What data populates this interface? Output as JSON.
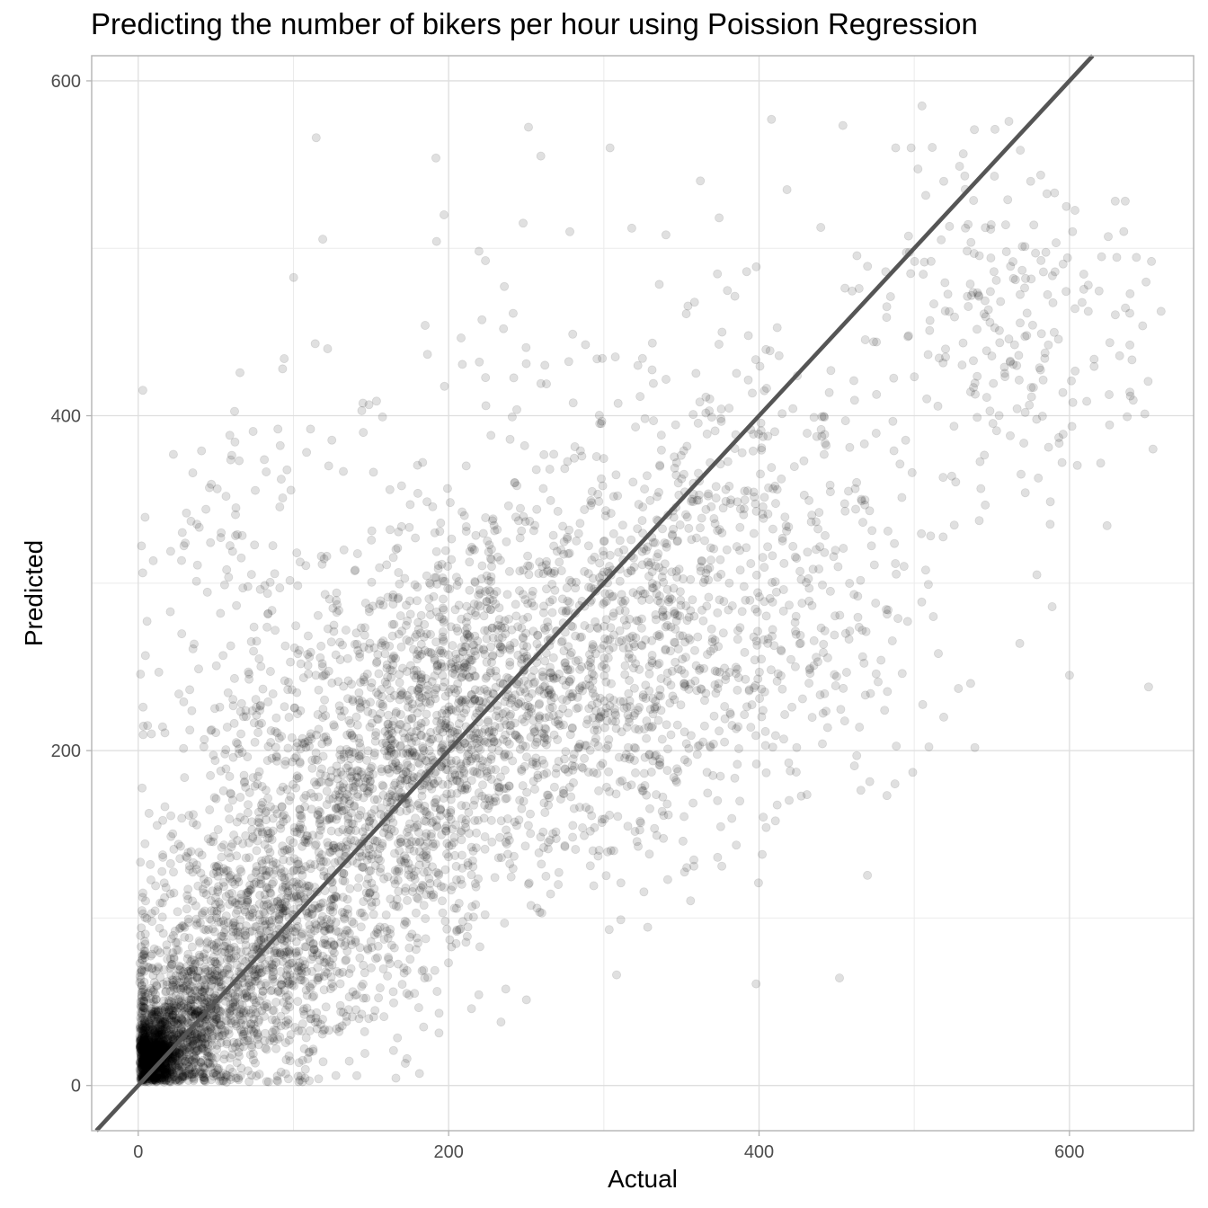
{
  "chart_data": {
    "type": "scatter",
    "title": "Predicting the number of bikers per hour using Poission Regression",
    "xlabel": "Actual",
    "ylabel": "Predicted",
    "xlim": [
      -30,
      680
    ],
    "ylim": [
      -27,
      615
    ],
    "x_ticks": [
      0,
      200,
      400,
      600
    ],
    "y_ticks": [
      0,
      200,
      400,
      600
    ],
    "x_tick_labels": [
      "0",
      "200",
      "400",
      "600"
    ],
    "y_tick_labels": [
      "0",
      "200",
      "400",
      "600"
    ],
    "grid": true,
    "reference_line": {
      "slope": 1,
      "intercept": 0,
      "color": "#555555"
    },
    "point_color": "#000000",
    "point_alpha": 0.12,
    "notable_points": [
      {
        "x": 408,
        "y": 577
      },
      {
        "x": 505,
        "y": 585
      },
      {
        "x": 304,
        "y": 560
      },
      {
        "x": 488,
        "y": 560
      },
      {
        "x": 498,
        "y": 560
      },
      {
        "x": 197,
        "y": 520
      },
      {
        "x": 248,
        "y": 515
      },
      {
        "x": 93,
        "y": 428
      },
      {
        "x": 114,
        "y": 443
      },
      {
        "x": 122,
        "y": 440
      },
      {
        "x": 144,
        "y": 403
      },
      {
        "x": 579,
        "y": 305
      },
      {
        "x": 600,
        "y": 245
      },
      {
        "x": 651,
        "y": 238
      },
      {
        "x": 568,
        "y": 264
      },
      {
        "x": 519,
        "y": 220
      },
      {
        "x": 499,
        "y": 187
      },
      {
        "x": 402,
        "y": 138
      },
      {
        "x": 376,
        "y": 131
      },
      {
        "x": 358,
        "y": 131
      },
      {
        "x": 311,
        "y": 121
      },
      {
        "x": 260,
        "y": 103
      },
      {
        "x": 236,
        "y": 97
      },
      {
        "x": 212,
        "y": 89
      },
      {
        "x": 178,
        "y": 55
      },
      {
        "x": 173,
        "y": 55
      },
      {
        "x": 106,
        "y": 15
      },
      {
        "x": 59,
        "y": 10
      },
      {
        "x": 6,
        "y": 215
      },
      {
        "x": 3,
        "y": 115
      },
      {
        "x": 34,
        "y": 337
      },
      {
        "x": 90,
        "y": 392
      },
      {
        "x": 111,
        "y": 392
      },
      {
        "x": 635,
        "y": 510
      },
      {
        "x": 625,
        "y": 507
      },
      {
        "x": 598,
        "y": 525
      },
      {
        "x": 575,
        "y": 540
      },
      {
        "x": 519,
        "y": 540
      },
      {
        "x": 418,
        "y": 535
      },
      {
        "x": 318,
        "y": 512
      },
      {
        "x": 340,
        "y": 508
      }
    ],
    "clusters": [
      {
        "cx": 10,
        "cy": 18,
        "sx": 8,
        "sy": 10,
        "count": 900
      },
      {
        "cx": 30,
        "cy": 35,
        "sx": 20,
        "sy": 22,
        "count": 800
      },
      {
        "cx": 75,
        "cy": 80,
        "sx": 35,
        "sy": 38,
        "count": 900
      },
      {
        "cx": 140,
        "cy": 150,
        "sx": 45,
        "sy": 55,
        "count": 900
      },
      {
        "cx": 200,
        "cy": 220,
        "sx": 45,
        "sy": 50,
        "count": 800
      },
      {
        "cx": 270,
        "cy": 240,
        "sx": 55,
        "sy": 55,
        "count": 600
      },
      {
        "cx": 340,
        "cy": 260,
        "sx": 55,
        "sy": 60,
        "count": 450
      },
      {
        "cx": 420,
        "cy": 320,
        "sx": 60,
        "sy": 70,
        "count": 320
      },
      {
        "cx": 560,
        "cy": 450,
        "sx": 45,
        "sy": 50,
        "count": 220
      },
      {
        "cx": 280,
        "cy": 380,
        "sx": 80,
        "sy": 80,
        "count": 160
      },
      {
        "cx": 70,
        "cy": 250,
        "sx": 40,
        "sy": 80,
        "count": 200
      }
    ]
  }
}
